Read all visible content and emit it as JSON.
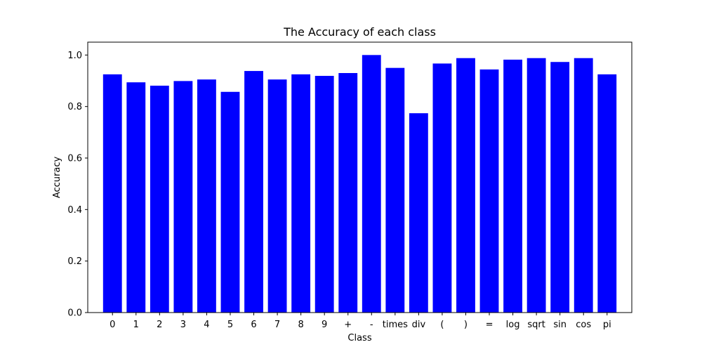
{
  "chart_data": {
    "type": "bar",
    "title": "The Accuracy of each class",
    "xlabel": "Class",
    "ylabel": "Accuracy",
    "categories": [
      "0",
      "1",
      "2",
      "3",
      "4",
      "5",
      "6",
      "7",
      "8",
      "9",
      "+",
      "-",
      "times",
      "div",
      "(",
      ")",
      "=",
      "log",
      "sqrt",
      "sin",
      "cos",
      "pi"
    ],
    "values": [
      0.925,
      0.894,
      0.881,
      0.899,
      0.905,
      0.857,
      0.938,
      0.905,
      0.925,
      0.919,
      0.93,
      1.0,
      0.95,
      0.774,
      0.967,
      0.988,
      0.944,
      0.982,
      0.988,
      0.973,
      0.988,
      0.925
    ],
    "ylim": [
      0,
      1.05
    ],
    "yticks": [
      "0.0",
      "0.2",
      "0.4",
      "0.6",
      "0.8",
      "1.0"
    ],
    "bar_color": "#0000ff",
    "grid": false,
    "legend": "none"
  }
}
